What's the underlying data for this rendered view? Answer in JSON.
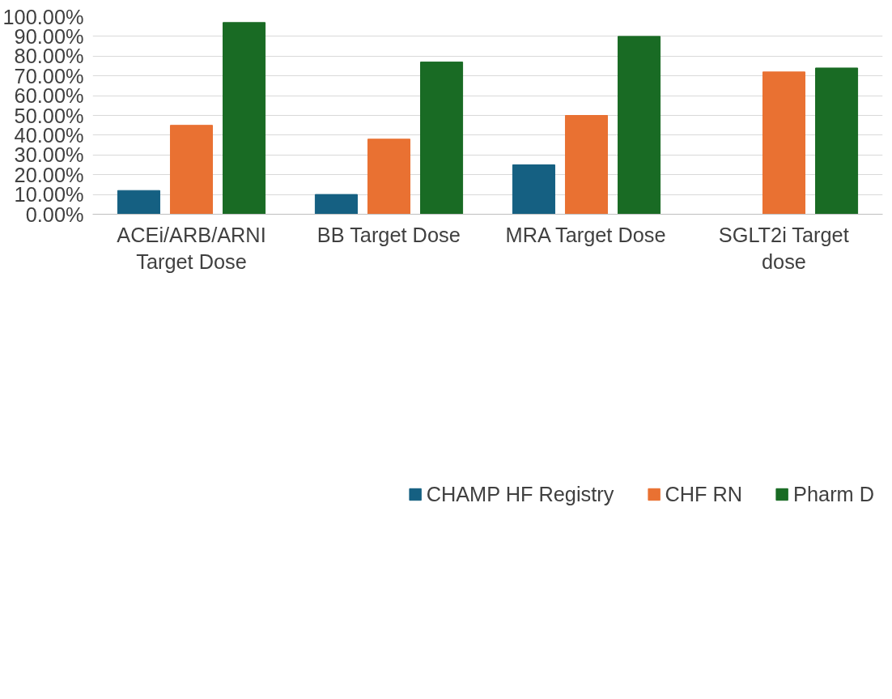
{
  "chart_data": {
    "type": "bar",
    "categories": [
      "ACEi/ARB/ARNI Target Dose",
      "BB Target Dose",
      "MRA Target Dose",
      "SGLT2i Target dose"
    ],
    "series": [
      {
        "name": "CHAMP HF Registry",
        "color": "#156082",
        "values": [
          12,
          10,
          25,
          null
        ]
      },
      {
        "name": "CHF RN",
        "color": "#e97132",
        "values": [
          45,
          38,
          50,
          72
        ]
      },
      {
        "name": "Pharm D",
        "color": "#196b24",
        "values": [
          97,
          77,
          90,
          74
        ]
      }
    ],
    "ylim": [
      0,
      100
    ],
    "yticks": [
      {
        "value": 0,
        "label": "0.00%"
      },
      {
        "value": 10,
        "label": "10.00%"
      },
      {
        "value": 20,
        "label": "20.00%"
      },
      {
        "value": 30,
        "label": "30.00%"
      },
      {
        "value": 40,
        "label": "40.00%"
      },
      {
        "value": 50,
        "label": "50.00%"
      },
      {
        "value": 60,
        "label": "60.00%"
      },
      {
        "value": 70,
        "label": "70.00%"
      },
      {
        "value": 80,
        "label": "80.00%"
      },
      {
        "value": 90,
        "label": "90.00%"
      },
      {
        "value": 100,
        "label": "100.00%"
      }
    ],
    "grid": "y",
    "legend": "bottom"
  }
}
